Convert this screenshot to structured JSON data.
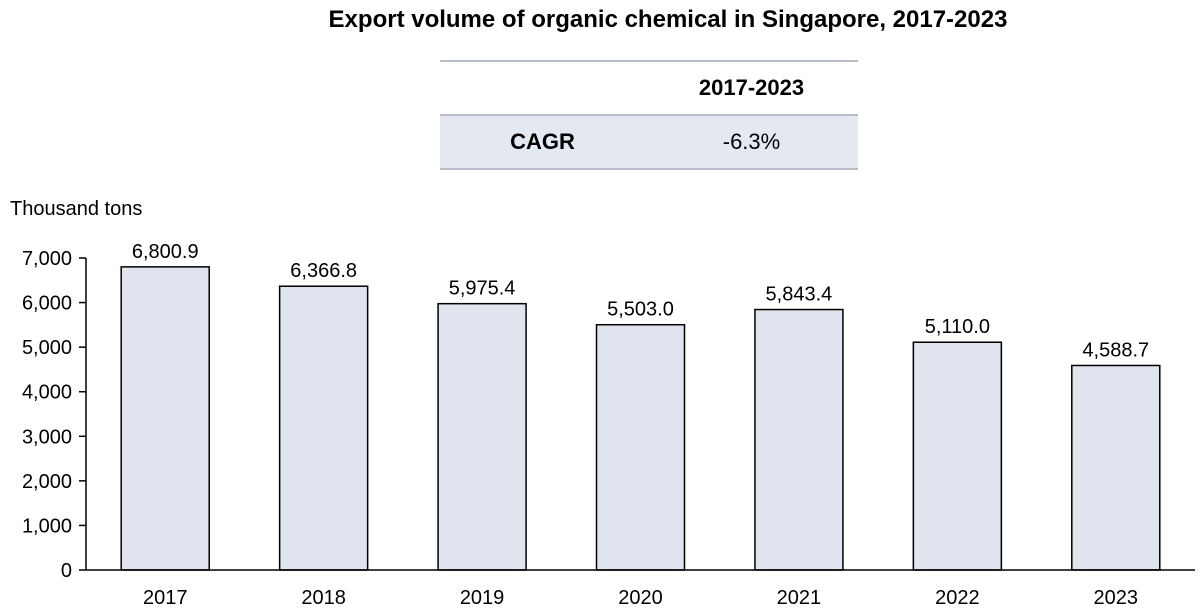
{
  "chart_data": {
    "type": "bar",
    "title": "Export volume of organic chemical in Singapore, 2017-2023",
    "ylabel": "Thousand tons",
    "xlabel": "",
    "categories": [
      "2017",
      "2018",
      "2019",
      "2020",
      "2021",
      "2022",
      "2023"
    ],
    "values": [
      6800.9,
      6366.8,
      5975.4,
      5503.0,
      5843.4,
      5110.0,
      4588.7
    ],
    "value_labels": [
      "6,800.9",
      "6,366.8",
      "5,975.4",
      "5,503.0",
      "5,843.4",
      "5,110.0",
      "4,588.7"
    ],
    "ylim": [
      0,
      7000
    ],
    "yticks": [
      0,
      1000,
      2000,
      3000,
      4000,
      5000,
      6000,
      7000
    ],
    "ytick_labels": [
      "0",
      "1,000",
      "2,000",
      "3,000",
      "4,000",
      "5,000",
      "6,000",
      "7,000"
    ],
    "bar_color": "#dfe4ee",
    "bar_edge_color": "#000000",
    "grid": false
  },
  "cagr_table": {
    "period_header": "2017-2023",
    "row_label": "CAGR",
    "row_value": "-6.3%"
  }
}
